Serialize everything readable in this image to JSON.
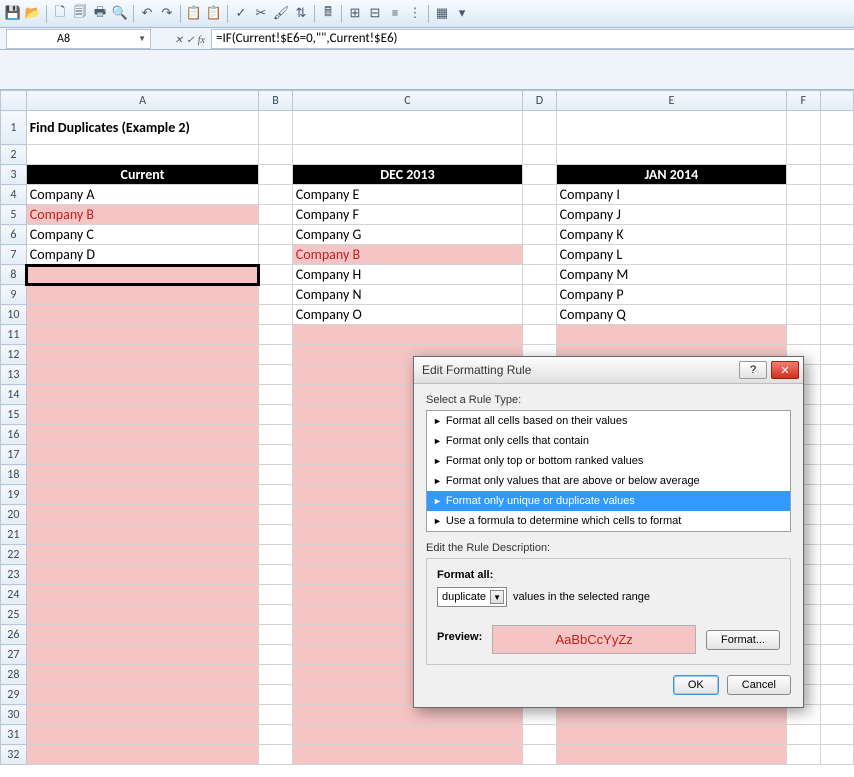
{
  "cellRef": "A8",
  "formula": "=IF(Current!$E6=0,\"\",Current!$E6)",
  "title": "Find Duplicates (Example 2)",
  "columns": {
    "widths": {
      "rowHdr": 26,
      "A": 234,
      "B": 34,
      "C": 234,
      "D": 34,
      "E": 234,
      "F": 34
    },
    "letters": [
      "A",
      "B",
      "C",
      "D",
      "E",
      "F"
    ]
  },
  "headers": {
    "A": "Current",
    "C": "DEC 2013",
    "E": "JAN 2014"
  },
  "dataA": [
    "Company A",
    "Company B",
    "Company C",
    "Company D",
    "",
    "",
    "",
    ""
  ],
  "dataC": [
    "Company E",
    "Company F",
    "Company G",
    "Company B",
    "Company H",
    "Company N",
    "Company O",
    ""
  ],
  "dataE": [
    "Company I",
    "Company J",
    "Company K",
    "Company L",
    "Company M",
    "Company P",
    "Company Q",
    ""
  ],
  "highlight": {
    "pinkBg": "#f5c4c4",
    "redText": "#c02020",
    "duplicates": [
      "A5",
      "C7"
    ]
  },
  "rowCount": 32,
  "dialog": {
    "title": "Edit Formatting Rule",
    "selectLabel": "Select a Rule Type:",
    "rules": [
      "Format all cells based on their values",
      "Format only cells that contain",
      "Format only top or bottom ranked values",
      "Format only values that are above or below average",
      "Format only unique or duplicate values",
      "Use a formula to determine which cells to format"
    ],
    "selectedRuleIndex": 4,
    "descLabel": "Edit the Rule Description:",
    "formatAll": "Format all:",
    "duplicateSel": "duplicate",
    "rangeText": "values in the selected range",
    "previewLabel": "Preview:",
    "previewText": "AaBbCcYyZz",
    "formatBtn": "Format...",
    "ok": "OK",
    "cancel": "Cancel"
  }
}
